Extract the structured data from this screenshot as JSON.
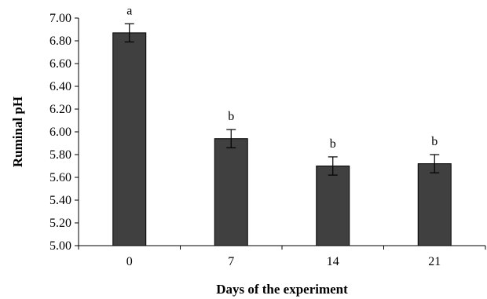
{
  "chart_data": {
    "type": "bar",
    "title": "",
    "xlabel": "Days of the experiment",
    "ylabel": "Ruminal pH",
    "categories": [
      "0",
      "7",
      "14",
      "21"
    ],
    "values": [
      6.87,
      5.94,
      5.7,
      5.72
    ],
    "errors": [
      0.08,
      0.08,
      0.08,
      0.08
    ],
    "significance": [
      "a",
      "b",
      "b",
      "b"
    ],
    "ylim": [
      5.0,
      7.0
    ],
    "yticks": [
      "5.00",
      "5.20",
      "5.40",
      "5.60",
      "5.80",
      "6.00",
      "6.20",
      "6.40",
      "6.60",
      "6.80",
      "7.00"
    ],
    "grid": false,
    "legend": "none",
    "bar_color": "#404040"
  }
}
